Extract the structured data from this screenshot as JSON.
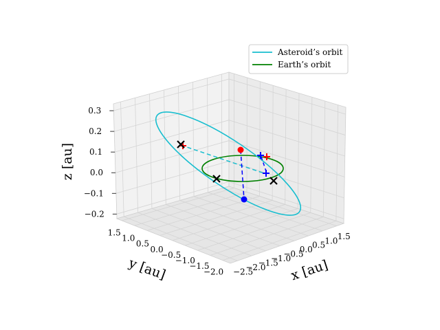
{
  "chart_data": {
    "type": "line",
    "projection": "3d",
    "grid": true,
    "legend_position": "top-right",
    "xlabel": "x [au]",
    "ylabel": "y [au]",
    "zlabel": "z [au]",
    "xticks": [
      "−2.5",
      "−2.0",
      "−1.5",
      "−1.0",
      "−0.5",
      "0.0",
      "0.5",
      "1.0",
      "1.5"
    ],
    "yticks": [
      "1.5",
      "1.0",
      "0.5",
      "0.0",
      "−0.5",
      "−1.0",
      "−1.5",
      "−2.0"
    ],
    "zticks": [
      "0.3",
      "0.2",
      "0.1",
      "0.0",
      "−0.1",
      "−0.2"
    ],
    "xlim": [
      -2.5,
      1.5
    ],
    "ylim": [
      -2.0,
      1.5
    ],
    "zlim": [
      -0.2,
      0.3
    ],
    "series": [
      {
        "name": "Asteroid’s orbit",
        "color": "#17becf",
        "kind": "ellipse",
        "semi_major_axis": 2.0,
        "eccentricity": 0.5,
        "inclination_deg": 9
      },
      {
        "name": "Earth’s orbit",
        "color": "#008000",
        "kind": "circle",
        "radius": 1.0,
        "z": 0.0
      }
    ],
    "markers": [
      {
        "name": "ascending-node-point",
        "shape": "circle",
        "color": "#ff0000"
      },
      {
        "name": "descending-node-point",
        "shape": "circle",
        "color": "#0000ff"
      },
      {
        "name": "asteroid-cross-left",
        "shape": "x",
        "color": "#000000"
      },
      {
        "name": "earth-cross-front",
        "shape": "x",
        "color": "#000000"
      },
      {
        "name": "earth-cross-right",
        "shape": "x",
        "color": "#000000"
      },
      {
        "name": "plus-red-left",
        "shape": "plus",
        "color": "#ff0000"
      },
      {
        "name": "plus-red-right",
        "shape": "plus",
        "color": "#ff0000"
      },
      {
        "name": "plus-blue-upper",
        "shape": "plus",
        "color": "#0000ff"
      },
      {
        "name": "plus-blue-lower",
        "shape": "plus",
        "color": "#0000ff"
      }
    ],
    "projection_lines": [
      {
        "name": "node-line",
        "color": "#0000ff",
        "style": "dashed"
      },
      {
        "name": "asteroid-connector",
        "color": "#17becf",
        "style": "dashed"
      },
      {
        "name": "asteroid-drop",
        "color": "#ff0000",
        "style": "dashed"
      }
    ]
  }
}
